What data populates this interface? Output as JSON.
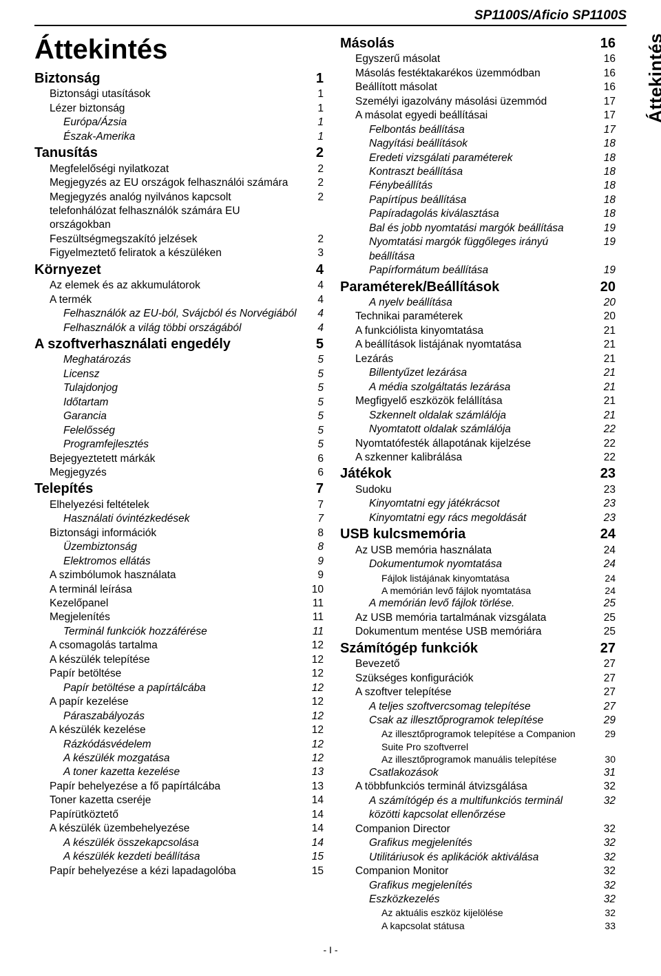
{
  "header": {
    "model": "SP1100S/Aficio SP1100S",
    "sideTab": "Áttekintés",
    "mainTitle": "Áttekintés",
    "footer": "- I -"
  },
  "leftCol": [
    {
      "lvl": 0,
      "label": "Biztonság",
      "page": "1"
    },
    {
      "lvl": 1,
      "label": "Biztonsági utasítások",
      "page": "1"
    },
    {
      "lvl": 1,
      "label": "Lézer biztonság",
      "page": "1"
    },
    {
      "lvl": 2,
      "label": "Európa/Ázsia",
      "page": "1"
    },
    {
      "lvl": 2,
      "label": "Észak-Amerika",
      "page": "1"
    },
    {
      "lvl": 0,
      "label": "Tanusítás",
      "page": "2"
    },
    {
      "lvl": 1,
      "label": "Megfelelőségi nyilatkozat",
      "page": "2"
    },
    {
      "lvl": 1,
      "label": "Megjegyzés az EU országok felhasználói számára",
      "page": "2"
    },
    {
      "lvl": 1,
      "label": "Megjegyzés analóg nyilvános kapcsolt telefonhálózat felhasználók számára EU országokban",
      "page": "2"
    },
    {
      "lvl": 1,
      "label": "Feszültségmegszakító jelzések",
      "page": "2"
    },
    {
      "lvl": 1,
      "label": "Figyelmeztető feliratok a készüléken",
      "page": "3"
    },
    {
      "lvl": 0,
      "label": "Környezet",
      "page": "4"
    },
    {
      "lvl": 1,
      "label": "Az elemek és az akkumulátorok",
      "page": "4"
    },
    {
      "lvl": 1,
      "label": "A termék",
      "page": "4"
    },
    {
      "lvl": 2,
      "label": "Felhasználók az EU-ból, Svájcból és Norvégiából",
      "page": "4"
    },
    {
      "lvl": 2,
      "label": "Felhasználók a világ többi országából",
      "page": "4"
    },
    {
      "lvl": 0,
      "label": "A szoftverhasználati engedély",
      "page": "5"
    },
    {
      "lvl": 2,
      "label": "Meghatározás",
      "page": "5"
    },
    {
      "lvl": 2,
      "label": "Licensz",
      "page": "5"
    },
    {
      "lvl": 2,
      "label": "Tulajdonjog",
      "page": "5"
    },
    {
      "lvl": 2,
      "label": "Időtartam",
      "page": "5"
    },
    {
      "lvl": 2,
      "label": "Garancia",
      "page": "5"
    },
    {
      "lvl": 2,
      "label": "Felelősség",
      "page": "5"
    },
    {
      "lvl": 2,
      "label": "Programfejlesztés",
      "page": "5"
    },
    {
      "lvl": 1,
      "label": "Bejegyeztetett márkák",
      "page": "6"
    },
    {
      "lvl": 1,
      "label": "Megjegyzés",
      "page": "6"
    },
    {
      "lvl": 0,
      "label": "Telepítés",
      "page": "7"
    },
    {
      "lvl": 1,
      "label": "Elhelyezési feltételek",
      "page": "7"
    },
    {
      "lvl": 2,
      "label": "Használati óvintézkedések",
      "page": "7"
    },
    {
      "lvl": 1,
      "label": "Biztonsági információk",
      "page": "8"
    },
    {
      "lvl": 2,
      "label": "Üzembiztonság",
      "page": "8"
    },
    {
      "lvl": 2,
      "label": "Elektromos ellátás",
      "page": "9"
    },
    {
      "lvl": 1,
      "label": "A szimbólumok használata",
      "page": "9"
    },
    {
      "lvl": 1,
      "label": "A terminál leírása",
      "page": "10"
    },
    {
      "lvl": 1,
      "label": "Kezelőpanel",
      "page": "11"
    },
    {
      "lvl": 1,
      "label": "Megjelenítés",
      "page": "11"
    },
    {
      "lvl": 2,
      "label": "Terminál funkciók hozzáférése",
      "page": "11"
    },
    {
      "lvl": 1,
      "label": "A csomagolás tartalma",
      "page": "12"
    },
    {
      "lvl": 1,
      "label": "A készülék telepítése",
      "page": "12"
    },
    {
      "lvl": 1,
      "label": "Papír betöltése",
      "page": "12"
    },
    {
      "lvl": 2,
      "label": "Papír betöltése a papírtálcába",
      "page": "12"
    },
    {
      "lvl": 1,
      "label": "A papír kezelése",
      "page": "12"
    },
    {
      "lvl": 2,
      "label": "Páraszabályozás",
      "page": "12"
    },
    {
      "lvl": 1,
      "label": "A készülék kezelése",
      "page": "12"
    },
    {
      "lvl": 2,
      "label": "Rázkódásvédelem",
      "page": "12"
    },
    {
      "lvl": 2,
      "label": "A készülék mozgatása",
      "page": "12"
    },
    {
      "lvl": 2,
      "label": "A toner kazetta kezelése",
      "page": "13"
    },
    {
      "lvl": 1,
      "label": "Papír behelyezése a fő papírtálcába",
      "page": "13"
    },
    {
      "lvl": 1,
      "label": "Toner kazetta cseréje",
      "page": "14"
    },
    {
      "lvl": 1,
      "label": "Papírütköztető",
      "page": "14"
    },
    {
      "lvl": 1,
      "label": "A készülék üzembehelyezése",
      "page": "14"
    },
    {
      "lvl": 2,
      "label": "A készülék összekapcsolása",
      "page": "14"
    },
    {
      "lvl": 2,
      "label": "A készülék kezdeti beállítása",
      "page": "15"
    },
    {
      "lvl": 1,
      "label": "Papír behelyezése a kézi lapadagolóba",
      "page": "15"
    }
  ],
  "rightCol": [
    {
      "lvl": 0,
      "label": "Másolás",
      "page": "16"
    },
    {
      "lvl": 1,
      "label": "Egyszerű másolat",
      "page": "16"
    },
    {
      "lvl": 1,
      "label": "Másolás festéktakarékos üzemmódban",
      "page": "16"
    },
    {
      "lvl": 1,
      "label": "Beállított másolat",
      "page": "16"
    },
    {
      "lvl": 1,
      "label": "Személyi igazolvány másolási üzemmód",
      "page": "17"
    },
    {
      "lvl": 1,
      "label": "A másolat egyedi beállításai",
      "page": "17"
    },
    {
      "lvl": 2,
      "label": "Felbontás beállítása",
      "page": "17"
    },
    {
      "lvl": 2,
      "label": "Nagyítási beállítások",
      "page": "18"
    },
    {
      "lvl": 2,
      "label": "Eredeti vizsgálati paraméterek",
      "page": "18"
    },
    {
      "lvl": 2,
      "label": "Kontraszt beállítása",
      "page": "18"
    },
    {
      "lvl": 2,
      "label": "Fénybeállítás",
      "page": "18"
    },
    {
      "lvl": 2,
      "label": "Papírtípus beállítása",
      "page": "18"
    },
    {
      "lvl": 2,
      "label": "Papíradagolás kiválasztása",
      "page": "18"
    },
    {
      "lvl": 2,
      "label": "Bal és jobb nyomtatási margók beállítása",
      "page": "19"
    },
    {
      "lvl": 2,
      "label": "Nyomtatási margók függőleges irányú beállítása",
      "page": "19"
    },
    {
      "lvl": 2,
      "label": "Papírformátum beállítása",
      "page": "19"
    },
    {
      "lvl": 0,
      "label": "Paraméterek/Beállítások",
      "page": "20"
    },
    {
      "lvl": 2,
      "label": "A nyelv beállítása",
      "page": "20"
    },
    {
      "lvl": 1,
      "label": "Technikai paraméterek",
      "page": "20"
    },
    {
      "lvl": 1,
      "label": "A funkciólista kinyomtatása",
      "page": "21"
    },
    {
      "lvl": 1,
      "label": "A beállítások listájának nyomtatása",
      "page": "21"
    },
    {
      "lvl": 1,
      "label": "Lezárás",
      "page": "21"
    },
    {
      "lvl": 2,
      "label": "Billentyűzet lezárása",
      "page": "21"
    },
    {
      "lvl": 2,
      "label": "A média szolgáltatás lezárása",
      "page": "21"
    },
    {
      "lvl": 1,
      "label": "Megfigyelő eszközök felállítása",
      "page": "21"
    },
    {
      "lvl": 2,
      "label": "Szkennelt oldalak számlálója",
      "page": "21"
    },
    {
      "lvl": 2,
      "label": "Nyomtatott oldalak számlálója",
      "page": "22"
    },
    {
      "lvl": 1,
      "label": "Nyomtatófesték állapotának kijelzése",
      "page": "22"
    },
    {
      "lvl": 1,
      "label": "A szkenner kalibrálása",
      "page": "22"
    },
    {
      "lvl": 0,
      "label": "Játékok",
      "page": "23"
    },
    {
      "lvl": 1,
      "label": "Sudoku",
      "page": "23"
    },
    {
      "lvl": 2,
      "label": "Kinyomtatni egy játékrácsot",
      "page": "23"
    },
    {
      "lvl": 2,
      "label": "Kinyomtatni egy rács megoldását",
      "page": "23"
    },
    {
      "lvl": 0,
      "label": "USB kulcsmemória",
      "page": "24"
    },
    {
      "lvl": 1,
      "label": "Az USB memória használata",
      "page": "24"
    },
    {
      "lvl": 2,
      "label": "Dokumentumok nyomtatása",
      "page": "24"
    },
    {
      "lvl": 3,
      "label": "Fájlok listájának kinyomtatása",
      "page": "24"
    },
    {
      "lvl": 3,
      "label": "A memórián levő fájlok nyomtatása",
      "page": "24"
    },
    {
      "lvl": 2,
      "label": "A memórián levő fájlok törlése.",
      "page": "25"
    },
    {
      "lvl": 1,
      "label": "Az USB memória tartalmának vizsgálata",
      "page": "25"
    },
    {
      "lvl": 1,
      "label": "Dokumentum mentése USB memóriára",
      "page": "25"
    },
    {
      "lvl": 0,
      "label": "Számítógép funkciók",
      "page": "27"
    },
    {
      "lvl": 1,
      "label": "Bevezető",
      "page": "27"
    },
    {
      "lvl": 1,
      "label": "Szükséges konfigurációk",
      "page": "27"
    },
    {
      "lvl": 1,
      "label": "A szoftver telepítése",
      "page": "27"
    },
    {
      "lvl": 2,
      "label": "A teljes szoftvercsomag telepítése",
      "page": "27"
    },
    {
      "lvl": 2,
      "label": "Csak az illesztőprogramok telepítése",
      "page": "29"
    },
    {
      "lvl": 3,
      "label": "Az illesztőprogramok telepítése a Companion Suite Pro szoftverrel",
      "page": "29"
    },
    {
      "lvl": 3,
      "label": "Az illesztőprogramok manuális telepítése",
      "page": "30"
    },
    {
      "lvl": 2,
      "label": "Csatlakozások",
      "page": "31"
    },
    {
      "lvl": 1,
      "label": "A többfunkciós terminál átvizsgálása",
      "page": "32"
    },
    {
      "lvl": 2,
      "label": "A számítógép és a multifunkciós terminál közötti kapcsolat ellenőrzése",
      "page": "32"
    },
    {
      "lvl": 1,
      "label": "Companion Director",
      "page": "32"
    },
    {
      "lvl": 2,
      "label": "Grafikus megjelenítés",
      "page": "32"
    },
    {
      "lvl": 2,
      "label": "Utilitáriusok és aplikációk aktiválása",
      "page": "32"
    },
    {
      "lvl": 1,
      "label": "Companion Monitor",
      "page": "32"
    },
    {
      "lvl": 2,
      "label": "Grafikus megjelenítés",
      "page": "32"
    },
    {
      "lvl": 2,
      "label": "Eszközkezelés",
      "page": "32"
    },
    {
      "lvl": 3,
      "label": "Az aktuális eszköz kijelölése",
      "page": "32"
    },
    {
      "lvl": 3,
      "label": "A kapcsolat státusa",
      "page": "33"
    }
  ]
}
